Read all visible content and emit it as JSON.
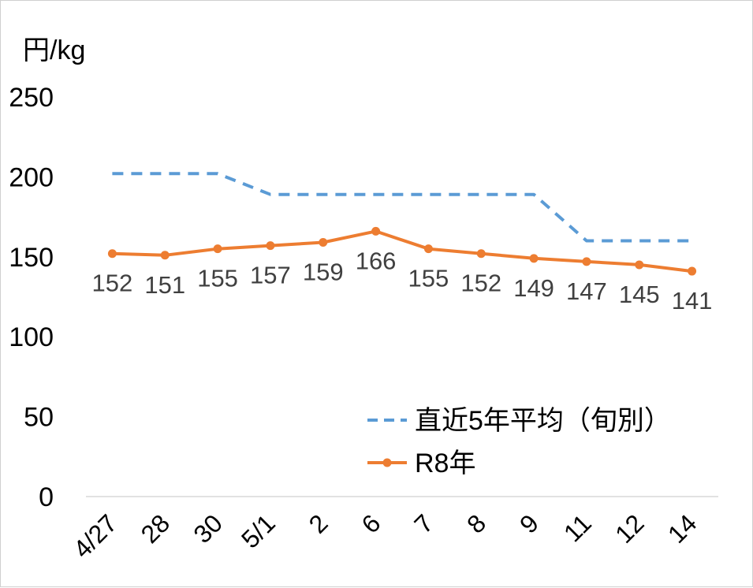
{
  "chart_data": {
    "type": "line",
    "ylabel": "円/kg",
    "ylim": [
      0,
      250
    ],
    "yticks": [
      0,
      50,
      100,
      150,
      200,
      250
    ],
    "categories": [
      "4/27",
      "28",
      "30",
      "5/1",
      "2",
      "6",
      "7",
      "8",
      "9",
      "11",
      "12",
      "14"
    ],
    "series": [
      {
        "name": "直近5年平均（旬別）",
        "style": "dashed",
        "color": "#5B9BD5",
        "values": [
          202,
          202,
          202,
          189,
          189,
          189,
          189,
          189,
          189,
          160,
          160,
          160
        ]
      },
      {
        "name": "R8年",
        "style": "solid-markers",
        "color": "#ED7D31",
        "values": [
          152,
          151,
          155,
          157,
          159,
          166,
          155,
          152,
          149,
          147,
          145,
          141
        ],
        "data_labels": [
          "152",
          "151",
          "155",
          "157",
          "159",
          "166",
          "155",
          "152",
          "149",
          "147",
          "145",
          "141"
        ]
      }
    ],
    "legend_position": "bottom-right",
    "grid": false
  }
}
